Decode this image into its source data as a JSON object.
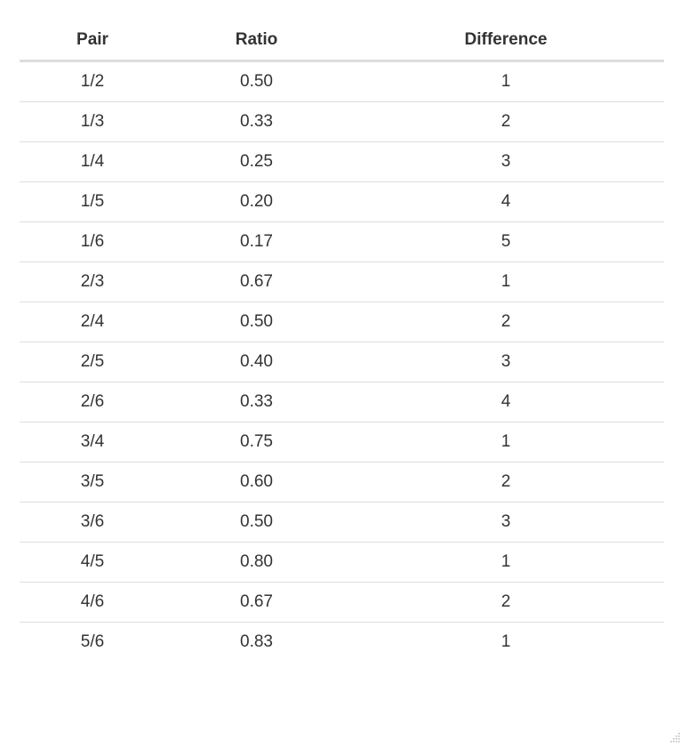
{
  "table": {
    "headers": [
      "Pair",
      "Ratio",
      "Difference"
    ],
    "rows": [
      [
        "1/2",
        "0.50",
        "1"
      ],
      [
        "1/3",
        "0.33",
        "2"
      ],
      [
        "1/4",
        "0.25",
        "3"
      ],
      [
        "1/5",
        "0.20",
        "4"
      ],
      [
        "1/6",
        "0.17",
        "5"
      ],
      [
        "2/3",
        "0.67",
        "1"
      ],
      [
        "2/4",
        "0.50",
        "2"
      ],
      [
        "2/5",
        "0.40",
        "3"
      ],
      [
        "2/6",
        "0.33",
        "4"
      ],
      [
        "3/4",
        "0.75",
        "1"
      ],
      [
        "3/5",
        "0.60",
        "2"
      ],
      [
        "3/6",
        "0.50",
        "3"
      ],
      [
        "4/5",
        "0.80",
        "1"
      ],
      [
        "4/6",
        "0.67",
        "2"
      ],
      [
        "5/6",
        "0.83",
        "1"
      ]
    ]
  },
  "icons": {
    "resize_grip": "resize-grip-icon"
  }
}
